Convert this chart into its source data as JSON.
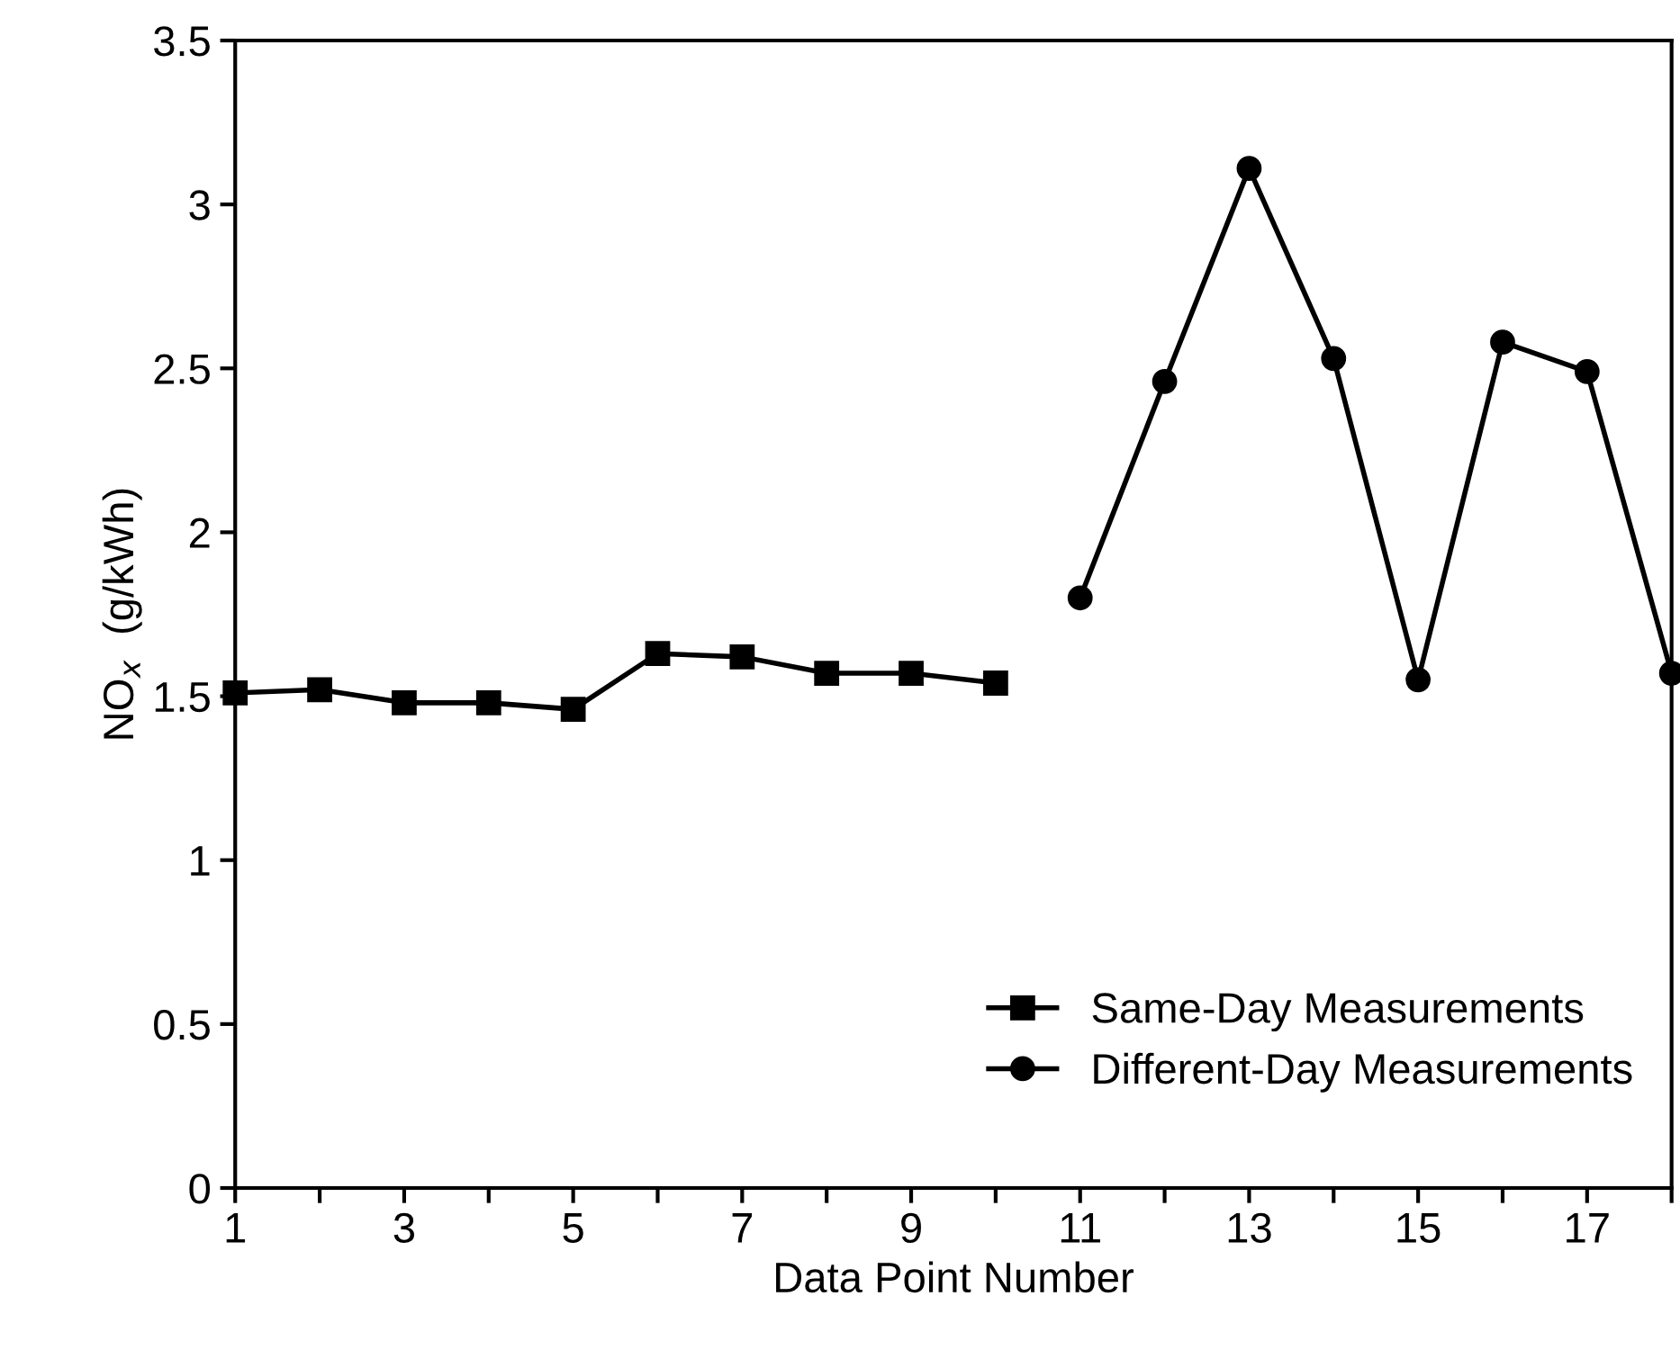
{
  "chart_data": {
    "type": "line",
    "xlabel": "Data Point Number",
    "ylabel": "NO$_{x}$  (g/kWh)",
    "xlim": [
      1,
      18
    ],
    "ylim": [
      0,
      3.5
    ],
    "xticks": [
      1,
      {
        "value": 2,
        "label": null
      },
      3,
      {
        "value": 4,
        "label": null
      },
      5,
      {
        "value": 6,
        "label": null
      },
      7,
      {
        "value": 8,
        "label": null
      },
      9,
      {
        "value": 10,
        "label": null
      },
      11,
      {
        "value": 12,
        "label": null
      },
      13,
      {
        "value": 14,
        "label": null
      },
      15,
      {
        "value": 16,
        "label": null
      },
      17,
      {
        "value": 18,
        "label": null
      }
    ],
    "yticks": [
      0,
      0.5,
      1,
      1.5,
      2,
      2.5,
      3,
      3.5
    ],
    "grid": false,
    "legend": "bottom right",
    "line_style": "solid",
    "series": [
      {
        "name": "Same-Day Measurements",
        "color": "#000000",
        "marker": "square",
        "x": [
          1,
          2,
          3,
          4,
          5,
          6,
          7,
          8,
          9,
          10
        ],
        "values": [
          1.51,
          1.52,
          1.48,
          1.48,
          1.46,
          1.63,
          1.62,
          1.57,
          1.57,
          1.54
        ]
      },
      {
        "name": "Different-Day Measurements",
        "color": "#000000",
        "marker": "circle",
        "x": [
          11,
          12,
          13,
          14,
          15,
          16,
          17,
          18
        ],
        "values": [
          1.8,
          2.46,
          3.11,
          2.53,
          1.55,
          2.58,
          2.49,
          1.57
        ]
      }
    ]
  }
}
